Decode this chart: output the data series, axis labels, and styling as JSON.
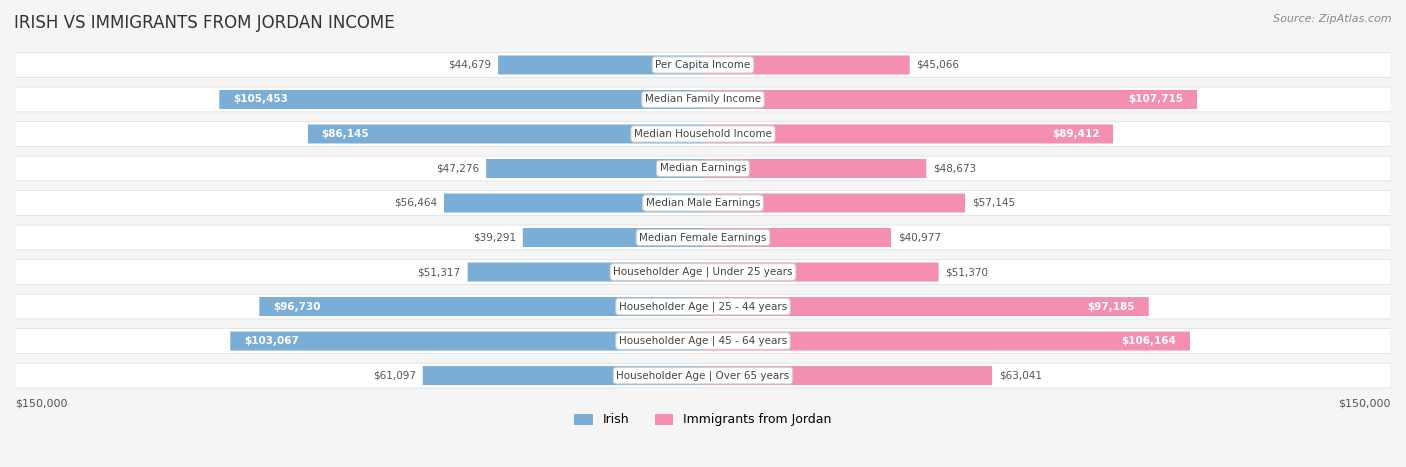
{
  "title": "IRISH VS IMMIGRANTS FROM JORDAN INCOME",
  "source": "Source: ZipAtlas.com",
  "categories": [
    "Per Capita Income",
    "Median Family Income",
    "Median Household Income",
    "Median Earnings",
    "Median Male Earnings",
    "Median Female Earnings",
    "Householder Age | Under 25 years",
    "Householder Age | 25 - 44 years",
    "Householder Age | 45 - 64 years",
    "Householder Age | Over 65 years"
  ],
  "irish_values": [
    44679,
    105453,
    86145,
    47276,
    56464,
    39291,
    51317,
    96730,
    103067,
    61097
  ],
  "jordan_values": [
    45066,
    107715,
    89412,
    48673,
    57145,
    40977,
    51370,
    97185,
    106164,
    63041
  ],
  "irish_labels": [
    "$44,679",
    "$105,453",
    "$86,145",
    "$47,276",
    "$56,464",
    "$39,291",
    "$51,317",
    "$96,730",
    "$103,067",
    "$61,097"
  ],
  "jordan_labels": [
    "$45,066",
    "$107,715",
    "$89,412",
    "$48,673",
    "$57,145",
    "$40,977",
    "$51,370",
    "$97,185",
    "$106,164",
    "$63,041"
  ],
  "irish_color_bar": "#7aaed6",
  "jordan_color_bar": "#f48fb1",
  "irish_color_dark": "#5b8fc7",
  "jordan_color_dark": "#e879a0",
  "label_color_light": "#888888",
  "label_color_dark_irish": "#ffffff",
  "label_color_dark_jordan": "#ffffff",
  "max_value": 150000,
  "background_color": "#f5f5f5",
  "row_bg_color": "#ffffff",
  "center_label_bg": "#ffffff",
  "legend_irish": "Irish",
  "legend_jordan": "Immigrants from Jordan",
  "irish_large_threshold": 70000,
  "jordan_large_threshold": 70000
}
